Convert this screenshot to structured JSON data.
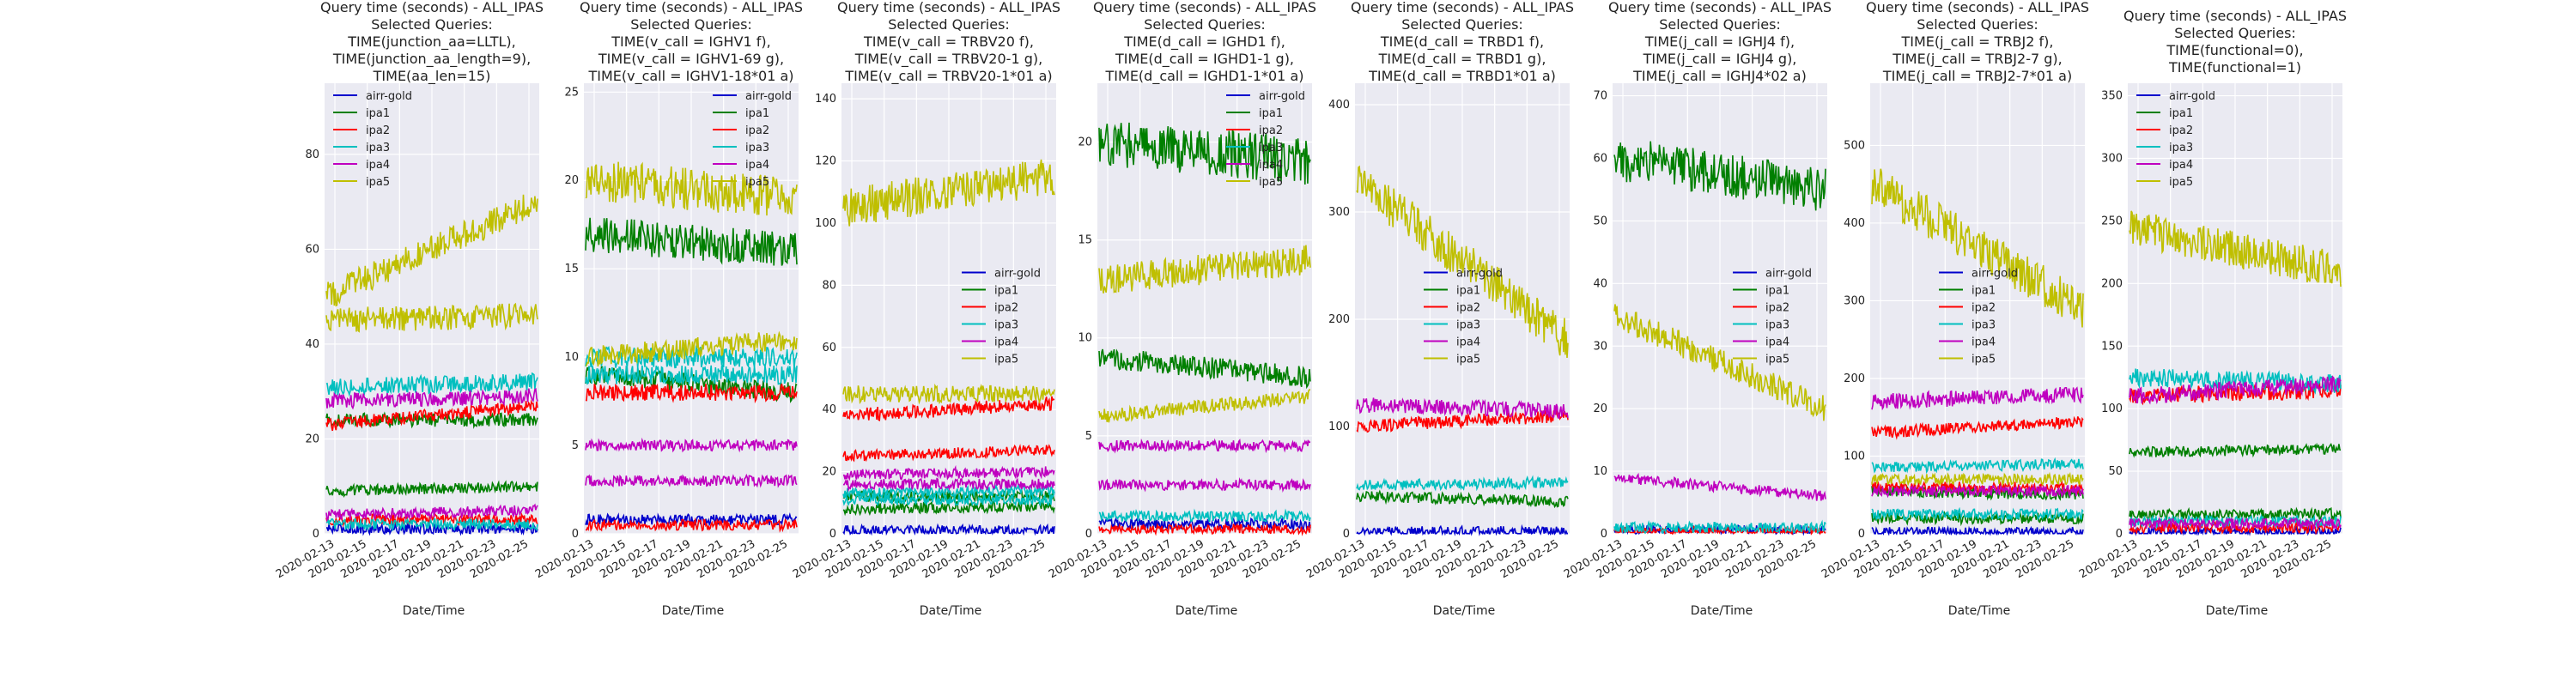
{
  "figure": {
    "xlabel": "Date/Time",
    "x_ticks": [
      "2020-02-13",
      "2020-02-15",
      "2020-02-17",
      "2020-02-19",
      "2020-02-21",
      "2020-02-23",
      "2020-02-25"
    ],
    "legend_labels": [
      "airr-gold",
      "ipa1",
      "ipa2",
      "ipa3",
      "ipa4",
      "ipa5"
    ],
    "series_colors": {
      "airr-gold": "#0000cc",
      "ipa1": "#007f00",
      "ipa2": "#ff0000",
      "ipa3": "#00bfbf",
      "ipa4": "#bf00bf",
      "ipa5": "#bfbf00"
    }
  },
  "chart_data": [
    {
      "type": "line",
      "title": [
        "Query time (seconds) - ALL_IPAS",
        "Selected Queries:",
        "TIME(junction_aa=LLTL),",
        "TIME(junction_aa_length=9),",
        "TIME(aa_len=15)"
      ],
      "xlabel": "Date/Time",
      "ylim": [
        0,
        95
      ],
      "yticks": [
        0,
        20,
        40,
        60,
        80
      ],
      "x_range": [
        "2020-02-13",
        "2020-02-27"
      ],
      "legend_position": "upper-left",
      "series": [
        {
          "name": "airr-gold",
          "values": [
            [
              1,
              1
            ]
          ]
        },
        {
          "name": "ipa1",
          "values": [
            [
              9,
              10
            ],
            [
              24,
              24
            ]
          ]
        },
        {
          "name": "ipa2",
          "values": [
            [
              23,
              27
            ],
            [
              3,
              3
            ]
          ]
        },
        {
          "name": "ipa3",
          "values": [
            [
              31,
              32
            ],
            [
              2,
              2
            ]
          ]
        },
        {
          "name": "ipa4",
          "values": [
            [
              28,
              29
            ],
            [
              4,
              5
            ]
          ]
        },
        {
          "name": "ipa5",
          "values": [
            [
              50,
              70
            ],
            [
              45,
              46
            ]
          ]
        }
      ]
    },
    {
      "type": "line",
      "title": [
        "Query time (seconds) - ALL_IPAS",
        "Selected Queries:",
        "TIME(v_call = IGHV1 f),",
        "TIME(v_call = IGHV1-69 g),",
        "TIME(v_call = IGHV1-18*01 a)"
      ],
      "xlabel": "Date/Time",
      "ylim": [
        0,
        25.5
      ],
      "yticks": [
        0,
        5,
        10,
        15,
        20,
        25
      ],
      "x_range": [
        "2020-02-13",
        "2020-02-27"
      ],
      "legend_position": "upper-right",
      "series": [
        {
          "name": "airr-gold",
          "values": [
            [
              0.8,
              0.8
            ]
          ]
        },
        {
          "name": "ipa1",
          "values": [
            [
              17,
              16
            ],
            [
              9,
              8
            ]
          ]
        },
        {
          "name": "ipa2",
          "values": [
            [
              8,
              8
            ],
            [
              0.5,
              0.5
            ]
          ]
        },
        {
          "name": "ipa3",
          "values": [
            [
              9,
              9
            ],
            [
              10,
              10
            ]
          ]
        },
        {
          "name": "ipa4",
          "values": [
            [
              5,
              5
            ],
            [
              3,
              3
            ]
          ]
        },
        {
          "name": "ipa5",
          "values": [
            [
              20,
              19
            ],
            [
              10,
              11
            ]
          ]
        }
      ]
    },
    {
      "type": "line",
      "title": [
        "Query time (seconds) - ALL_IPAS",
        "Selected Queries:",
        "TIME(v_call = TRBV20 f),",
        "TIME(v_call = TRBV20-1 g),",
        "TIME(v_call = TRBV20-1*01  a)"
      ],
      "xlabel": "Date/Time",
      "ylim": [
        0,
        145
      ],
      "yticks": [
        0,
        20,
        40,
        60,
        80,
        100,
        120,
        140
      ],
      "x_range": [
        "2020-02-13",
        "2020-02-27"
      ],
      "legend_position": "center-right",
      "series": [
        {
          "name": "airr-gold",
          "values": [
            [
              1,
              1
            ]
          ]
        },
        {
          "name": "ipa1",
          "values": [
            [
              8,
              9
            ],
            [
              12,
              12
            ]
          ]
        },
        {
          "name": "ipa2",
          "values": [
            [
              38,
              42
            ],
            [
              25,
              27
            ]
          ]
        },
        {
          "name": "ipa3",
          "values": [
            [
              13,
              14
            ],
            [
              11,
              11
            ]
          ]
        },
        {
          "name": "ipa4",
          "values": [
            [
              19,
              20
            ],
            [
              16,
              16
            ]
          ]
        },
        {
          "name": "ipa5",
          "values": [
            [
              105,
              115
            ],
            [
              45,
              45
            ]
          ]
        }
      ]
    },
    {
      "type": "line",
      "title": [
        "Query time (seconds) - ALL_IPAS",
        "Selected Queries:",
        "TIME(d_call = IGHD1 f),",
        "TIME(d_call = IGHD1-1 g),",
        "TIME(d_call = IGHD1-1*01 a)"
      ],
      "xlabel": "Date/Time",
      "ylim": [
        0,
        23
      ],
      "yticks": [
        0,
        5,
        10,
        15,
        20
      ],
      "x_range": [
        "2020-02-13",
        "2020-02-27"
      ],
      "legend_position": "upper-right",
      "series": [
        {
          "name": "airr-gold",
          "values": [
            [
              0.5,
              0.5
            ]
          ]
        },
        {
          "name": "ipa1",
          "values": [
            [
              20,
              19
            ],
            [
              9,
              8
            ]
          ]
        },
        {
          "name": "ipa2",
          "values": [
            [
              0.2,
              0.2
            ]
          ]
        },
        {
          "name": "ipa3",
          "values": [
            [
              0.9,
              0.9
            ]
          ]
        },
        {
          "name": "ipa4",
          "values": [
            [
              4.5,
              4.5
            ],
            [
              2.5,
              2.5
            ]
          ]
        },
        {
          "name": "ipa5",
          "values": [
            [
              13,
              14
            ],
            [
              6,
              7
            ]
          ]
        }
      ]
    },
    {
      "type": "line",
      "title": [
        "Query time (seconds) - ALL_IPAS",
        "Selected Queries:",
        "TIME(d_call = TRBD1 f),",
        "TIME(d_call = TRBD1 g),",
        "TIME(d_call = TRBD1*01 a)"
      ],
      "xlabel": "Date/Time",
      "ylim": [
        0,
        420
      ],
      "yticks": [
        0,
        100,
        200,
        300,
        400
      ],
      "x_range": [
        "2020-02-13",
        "2020-02-27"
      ],
      "legend_position": "center",
      "series": [
        {
          "name": "airr-gold",
          "values": [
            [
              2,
              2
            ]
          ]
        },
        {
          "name": "ipa1",
          "values": [
            [
              35,
              30
            ]
          ]
        },
        {
          "name": "ipa2",
          "values": [
            [
              100,
              110
            ]
          ]
        },
        {
          "name": "ipa3",
          "values": [
            [
              45,
              48
            ]
          ]
        },
        {
          "name": "ipa4",
          "values": [
            [
              120,
              115
            ]
          ]
        },
        {
          "name": "ipa5",
          "values": [
            [
              330,
              180
            ]
          ]
        }
      ]
    },
    {
      "type": "line",
      "title": [
        "Query time (seconds) - ALL_IPAS",
        "Selected Queries:",
        "TIME(j_call = IGHJ4 f),",
        "TIME(j_call = IGHJ4 g),",
        "TIME(j_call = IGHJ4*02 a)"
      ],
      "xlabel": "Date/Time",
      "ylim": [
        0,
        72
      ],
      "yticks": [
        0,
        10,
        20,
        30,
        40,
        50,
        60,
        70
      ],
      "x_range": [
        "2020-02-13",
        "2020-02-27"
      ],
      "legend_position": "center-right",
      "series": [
        {
          "name": "airr-gold",
          "values": [
            [
              0.5,
              0.5
            ]
          ]
        },
        {
          "name": "ipa1",
          "values": [
            [
              60,
              55
            ]
          ]
        },
        {
          "name": "ipa2",
          "values": [
            [
              0.3,
              0.3
            ]
          ]
        },
        {
          "name": "ipa3",
          "values": [
            [
              1,
              1
            ]
          ]
        },
        {
          "name": "ipa4",
          "values": [
            [
              9,
              6
            ]
          ]
        },
        {
          "name": "ipa5",
          "values": [
            [
              35,
              20
            ]
          ]
        }
      ]
    },
    {
      "type": "line",
      "title": [
        "Query time (seconds) - ALL_IPAS",
        "Selected Queries:",
        "TIME(j_call = TRBJ2 f),",
        "TIME(j_call = TRBJ2-7 g),",
        "TIME(j_call = TRBJ2-7*01 a)"
      ],
      "xlabel": "Date/Time",
      "ylim": [
        0,
        580
      ],
      "yticks": [
        0,
        100,
        200,
        300,
        400,
        500
      ],
      "x_range": [
        "2020-02-13",
        "2020-02-27"
      ],
      "legend_position": "center",
      "series": [
        {
          "name": "airr-gold",
          "values": [
            [
              2,
              2
            ]
          ]
        },
        {
          "name": "ipa1",
          "values": [
            [
              55,
              50
            ],
            [
              20,
              20
            ]
          ]
        },
        {
          "name": "ipa2",
          "values": [
            [
              130,
              145
            ],
            [
              60,
              60
            ]
          ]
        },
        {
          "name": "ipa3",
          "values": [
            [
              85,
              90
            ],
            [
              25,
              25
            ]
          ]
        },
        {
          "name": "ipa4",
          "values": [
            [
              170,
              180
            ],
            [
              55,
              55
            ]
          ]
        },
        {
          "name": "ipa5",
          "values": [
            [
              450,
              290
            ],
            [
              70,
              70
            ]
          ]
        }
      ]
    },
    {
      "type": "line",
      "title": [
        "Query time (seconds) - ALL_IPAS",
        "Selected Queries:",
        "TIME(functional=0),",
        "TIME(functional=1)"
      ],
      "xlabel": "Date/Time",
      "ylim": [
        0,
        360
      ],
      "yticks": [
        0,
        50,
        100,
        150,
        200,
        250,
        300,
        350
      ],
      "x_range": [
        "2020-02-13",
        "2020-02-27"
      ],
      "legend_position": "upper-left",
      "series": [
        {
          "name": "airr-gold",
          "values": [
            [
              1,
              1
            ]
          ]
        },
        {
          "name": "ipa1",
          "values": [
            [
              65,
              68
            ],
            [
              15,
              16
            ]
          ]
        },
        {
          "name": "ipa2",
          "values": [
            [
              110,
              115
            ],
            [
              5,
              5
            ]
          ]
        },
        {
          "name": "ipa3",
          "values": [
            [
              125,
              120
            ],
            [
              10,
              10
            ]
          ]
        },
        {
          "name": "ipa4",
          "values": [
            [
              110,
              120
            ],
            [
              8,
              8
            ]
          ]
        },
        {
          "name": "ipa5",
          "values": [
            [
              245,
              210
            ]
          ]
        }
      ]
    }
  ]
}
